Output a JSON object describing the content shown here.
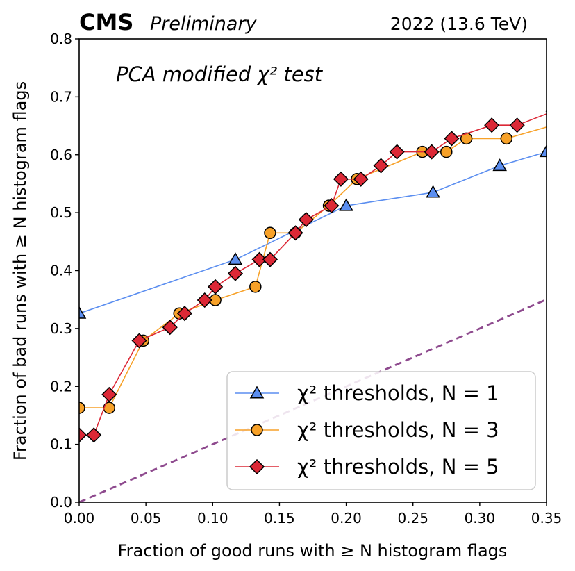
{
  "header": {
    "experiment": "CMS",
    "status": "Preliminary",
    "energy": "2022 (13.6 TeV)"
  },
  "annotation": "PCA modified χ² test",
  "chart_data": {
    "type": "line",
    "xlabel": "Fraction of good runs with ≥ N histogram flags",
    "ylabel": "Fraction of bad runs with ≥ N histogram flags",
    "xlim": [
      0,
      0.35
    ],
    "ylim": [
      0,
      0.8
    ],
    "xticks": [
      "0.00",
      "0.05",
      "0.10",
      "0.15",
      "0.20",
      "0.25",
      "0.30",
      "0.35"
    ],
    "yticks": [
      "0.0",
      "0.1",
      "0.2",
      "0.3",
      "0.4",
      "0.5",
      "0.6",
      "0.7",
      "0.8"
    ],
    "xtick_values": [
      0,
      0.05,
      0.1,
      0.15,
      0.2,
      0.25,
      0.3,
      0.35
    ],
    "ytick_values": [
      0,
      0.1,
      0.2,
      0.3,
      0.4,
      0.5,
      0.6,
      0.7,
      0.8
    ],
    "grid": false,
    "legend_position": "bottom-right",
    "series": [
      {
        "name": "χ² thresholds, N = 1",
        "color": "#5b8ef0",
        "marker": "triangle",
        "x": [
          0.0,
          0.117,
          0.2,
          0.265,
          0.315,
          0.35
        ],
        "y": [
          0.326,
          0.419,
          0.512,
          0.535,
          0.581,
          0.605
        ]
      },
      {
        "name": "χ² thresholds, N = 3",
        "color": "#f7a128",
        "marker": "circle",
        "x": [
          0.0,
          0.0225,
          0.048,
          0.075,
          0.102,
          0.132,
          0.143,
          0.162,
          0.187,
          0.208,
          0.257,
          0.275,
          0.29,
          0.32,
          0.355
        ],
        "y": [
          0.163,
          0.163,
          0.279,
          0.326,
          0.349,
          0.372,
          0.465,
          0.465,
          0.512,
          0.558,
          0.605,
          0.605,
          0.628,
          0.628,
          0.651
        ]
      },
      {
        "name": "χ² thresholds, N = 5",
        "color": "#dc2836",
        "marker": "diamond",
        "x": [
          0.0,
          0.011,
          0.0225,
          0.045,
          0.068,
          0.079,
          0.094,
          0.102,
          0.117,
          0.135,
          0.143,
          0.162,
          0.17,
          0.189,
          0.196,
          0.211,
          0.226,
          0.238,
          0.264,
          0.279,
          0.309,
          0.328,
          0.355
        ],
        "y": [
          0.116,
          0.116,
          0.186,
          0.279,
          0.302,
          0.326,
          0.349,
          0.372,
          0.395,
          0.419,
          0.419,
          0.465,
          0.488,
          0.512,
          0.558,
          0.558,
          0.581,
          0.605,
          0.605,
          0.628,
          0.651,
          0.651,
          0.675
        ]
      }
    ],
    "reference_line": {
      "color": "#8e4a8e",
      "style": "dashed",
      "x": [
        0.0,
        0.35
      ],
      "y": [
        0.0,
        0.35
      ]
    }
  }
}
